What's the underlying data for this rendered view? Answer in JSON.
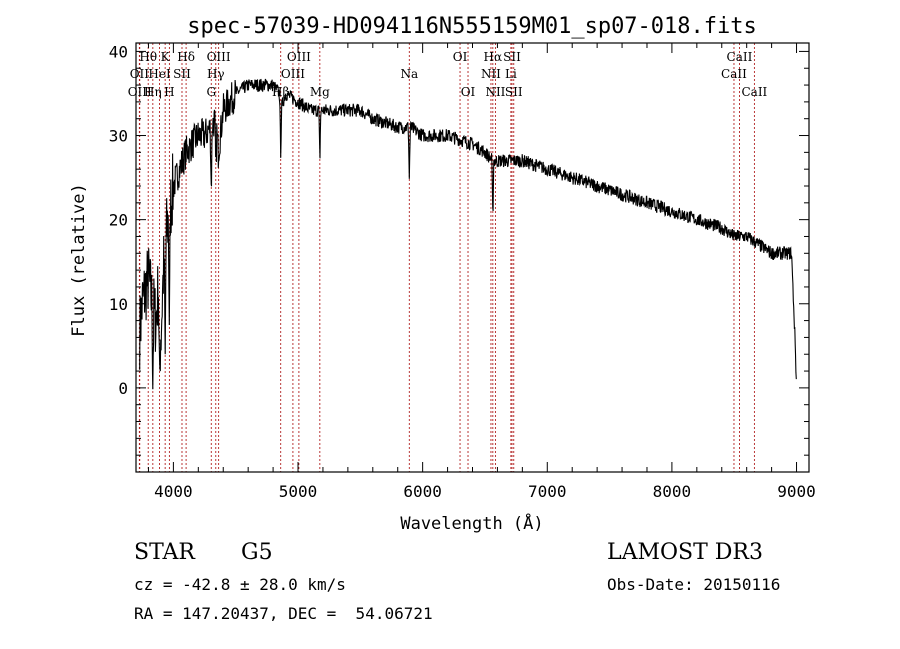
{
  "chart_data": {
    "type": "line",
    "title": "spec-57039-HD094116N555159M01_sp07-018.fits",
    "xlabel": "Wavelength (Å)",
    "ylabel": "Flux (relative)",
    "xlim": [
      3700,
      9100
    ],
    "ylim": [
      -10,
      41
    ],
    "x_ticks": [
      4000,
      5000,
      6000,
      7000,
      8000,
      9000
    ],
    "y_ticks": [
      0,
      10,
      20,
      30,
      40
    ],
    "line_color": "#000000",
    "marker_color": "#b22222",
    "spectrum_anchors": {
      "x": [
        3700,
        3720,
        3750,
        3780,
        3800,
        3830,
        3860,
        3880,
        3900,
        3920,
        3940,
        3960,
        3980,
        4000,
        4050,
        4100,
        4150,
        4200,
        4250,
        4300,
        4340,
        4360,
        4400,
        4450,
        4500,
        4600,
        4700,
        4800,
        4850,
        4860,
        4900,
        5000,
        5100,
        5200,
        5300,
        5400,
        5500,
        5600,
        5800,
        5900,
        6000,
        6200,
        6400,
        6500,
        6563,
        6600,
        6700,
        6800,
        7000,
        7200,
        7400,
        7600,
        7800,
        8000,
        8200,
        8400,
        8500,
        8600,
        8700,
        8800,
        8900,
        8960,
        8990,
        9000
      ],
      "y": [
        3,
        5,
        10,
        12,
        13,
        10,
        8,
        12,
        6,
        14,
        18,
        20,
        22,
        24,
        26,
        28,
        29,
        30,
        30,
        31,
        32,
        28,
        33,
        34,
        35,
        36,
        36,
        36,
        35,
        33,
        35,
        34,
        33,
        33,
        33,
        33,
        33,
        32,
        31,
        31,
        30,
        30,
        29,
        28,
        27,
        27,
        27,
        27,
        26,
        25,
        24,
        23,
        22,
        21,
        20,
        19,
        18,
        18,
        17,
        16,
        16,
        16,
        5,
        0
      ]
    },
    "spectral_lines": [
      {
        "label": "Hθ",
        "wavelength": 3798,
        "row": 1
      },
      {
        "label": "OII",
        "wavelength": 3727,
        "row": 2
      },
      {
        "label": "OIII",
        "wavelength": 3730,
        "row": 3
      },
      {
        "label": "K",
        "wavelength": 3934,
        "row": 1
      },
      {
        "label": "HeI",
        "wavelength": 3889,
        "row": 2
      },
      {
        "label": "Hη",
        "wavelength": 3835,
        "row": 3
      },
      {
        "label": "Hδ",
        "wavelength": 4102,
        "row": 1
      },
      {
        "label": "SII",
        "wavelength": 4069,
        "row": 2
      },
      {
        "label": "H",
        "wavelength": 3968,
        "row": 3
      },
      {
        "label": "OIII",
        "wavelength": 4363,
        "row": 1
      },
      {
        "label": "Hγ",
        "wavelength": 4340,
        "row": 2
      },
      {
        "label": "G",
        "wavelength": 4304,
        "row": 3
      },
      {
        "label": "OIII",
        "wavelength": 5007,
        "row": 1
      },
      {
        "label": "OIII",
        "wavelength": 4959,
        "row": 2
      },
      {
        "label": "Hβ",
        "wavelength": 4861,
        "row": 3
      },
      {
        "label": "Mg",
        "wavelength": 5175,
        "row": 3
      },
      {
        "label": "Na",
        "wavelength": 5893,
        "row": 2
      },
      {
        "label": "OI",
        "wavelength": 6300,
        "row": 1
      },
      {
        "label": "OI",
        "wavelength": 6364,
        "row": 3
      },
      {
        "label": "Hα",
        "wavelength": 6563,
        "row": 1
      },
      {
        "label": "NII",
        "wavelength": 6548,
        "row": 2
      },
      {
        "label": "NII",
        "wavelength": 6584,
        "row": 3
      },
      {
        "label": "SII",
        "wavelength": 6717,
        "row": 1
      },
      {
        "label": "Li",
        "wavelength": 6708,
        "row": 2
      },
      {
        "label": "SII",
        "wavelength": 6731,
        "row": 3
      },
      {
        "label": "CaII",
        "wavelength": 8542,
        "row": 1
      },
      {
        "label": "CaII",
        "wavelength": 8498,
        "row": 2
      },
      {
        "label": "CaII",
        "wavelength": 8662,
        "row": 3
      }
    ]
  },
  "info": {
    "object_class": "STAR",
    "subclass": "G5",
    "survey": "LAMOST DR3",
    "redshift": "cz = -42.8 ± 28.0 km/s",
    "obs_date": "Obs-Date: 20150116",
    "coords": "RA = 147.20437, DEC =  54.06721"
  }
}
